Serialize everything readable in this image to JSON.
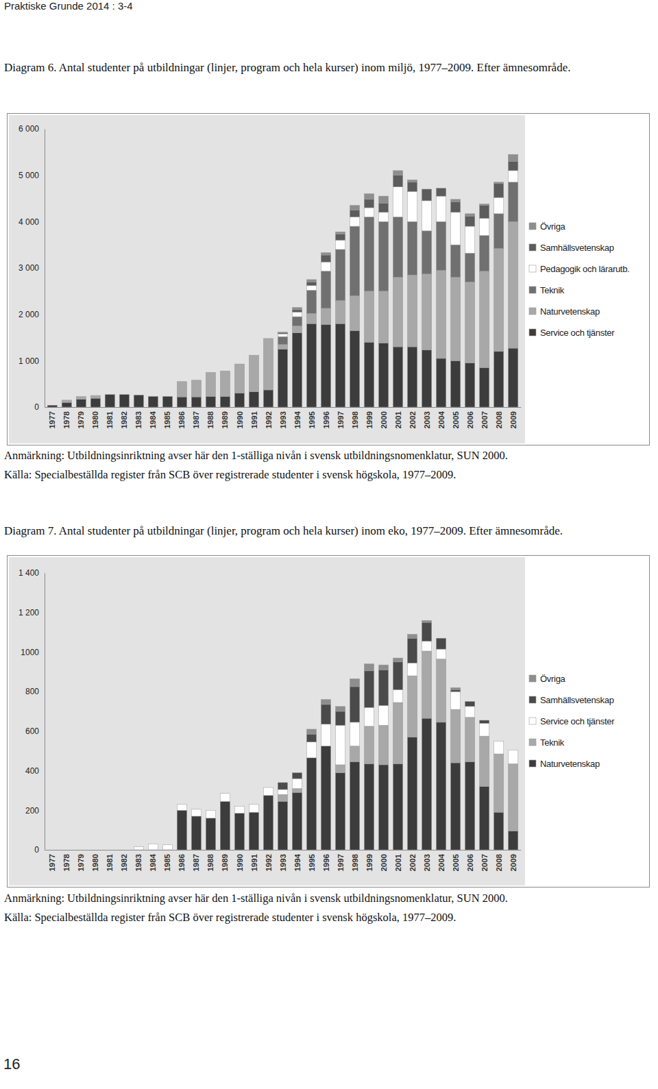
{
  "page": {
    "header": "Praktiske Grunde 2014 : 3-4",
    "page_number": "16"
  },
  "chart_data": [
    {
      "type": "bar",
      "stacked": true,
      "legend": "right",
      "grid": false,
      "title": "Diagram 6. Antal studenter på utbildningar (linjer, program och hela kurser) inom miljö, 1977–2009. Efter ämnesområde.",
      "annotations": [
        "Anmärkning: Utbildningsinriktning avser här den 1-ställiga nivån i svensk utbildningsnomenklatur, SUN 2000.",
        "Källa: Specialbeställda register från SCB över registrerade studenter i svensk högskola, 1977–2009."
      ],
      "categories": [
        "1977",
        "1978",
        "1979",
        "1980",
        "1981",
        "1982",
        "1983",
        "1984",
        "1985",
        "1986",
        "1987",
        "1988",
        "1989",
        "1990",
        "1991",
        "1992",
        "1993",
        "1994",
        "1995",
        "1996",
        "1997",
        "1998",
        "1999",
        "2000",
        "2001",
        "2002",
        "2003",
        "2004",
        "2005",
        "2006",
        "2007",
        "2008",
        "2009"
      ],
      "ylim": [
        0,
        6000
      ],
      "yticks": [
        0,
        {
          "value": 1000,
          "label": "1 000"
        },
        {
          "value": 2000,
          "label": "2 000"
        },
        {
          "value": 3000,
          "label": "3 000"
        },
        {
          "value": 4000,
          "label": "4 000"
        },
        {
          "value": 5000,
          "label": "5 000"
        },
        {
          "value": 6000,
          "label": "6 000"
        }
      ],
      "series": [
        {
          "name": "Service och tjänster",
          "color": "#3c3c3c",
          "values": [
            40,
            100,
            170,
            190,
            270,
            270,
            260,
            230,
            230,
            220,
            220,
            230,
            230,
            300,
            330,
            370,
            1250,
            1600,
            1800,
            1780,
            1800,
            1650,
            1400,
            1380,
            1300,
            1300,
            1230,
            1050,
            1000,
            950,
            850,
            1200,
            1270
          ]
        },
        {
          "name": "Naturvetenskap",
          "color": "#a8a8a8",
          "values": [
            0,
            50,
            60,
            60,
            0,
            0,
            0,
            0,
            0,
            330,
            360,
            520,
            550,
            630,
            790,
            1110,
            100,
            150,
            220,
            350,
            500,
            750,
            1100,
            1120,
            1500,
            1550,
            1640,
            1900,
            1800,
            1750,
            2080,
            2220,
            2730
          ]
        },
        {
          "name": "Teknik",
          "color": "#707070",
          "values": [
            0,
            0,
            0,
            0,
            0,
            0,
            0,
            0,
            0,
            0,
            0,
            0,
            0,
            0,
            0,
            0,
            170,
            200,
            500,
            800,
            1100,
            1500,
            1600,
            1500,
            1300,
            1150,
            930,
            1050,
            700,
            620,
            770,
            750,
            850
          ]
        },
        {
          "name": "Pedagogik och lärarutb.",
          "color": "#ffffff",
          "values": [
            0,
            0,
            0,
            0,
            0,
            0,
            0,
            0,
            0,
            0,
            0,
            0,
            0,
            0,
            0,
            0,
            60,
            100,
            100,
            200,
            200,
            200,
            200,
            200,
            650,
            650,
            650,
            550,
            700,
            580,
            370,
            350,
            250
          ]
        },
        {
          "name": "Samhällsvetenskap",
          "color": "#5c5c5c",
          "values": [
            0,
            0,
            0,
            0,
            0,
            0,
            0,
            0,
            0,
            0,
            0,
            0,
            0,
            0,
            0,
            0,
            20,
            50,
            80,
            150,
            130,
            150,
            180,
            200,
            250,
            200,
            250,
            170,
            230,
            220,
            280,
            300,
            200
          ]
        },
        {
          "name": "Övriga",
          "color": "#8e8e8e",
          "values": [
            0,
            0,
            0,
            0,
            0,
            0,
            0,
            0,
            0,
            0,
            0,
            0,
            0,
            0,
            0,
            0,
            20,
            50,
            50,
            50,
            50,
            100,
            120,
            150,
            100,
            50,
            0,
            0,
            50,
            50,
            30,
            30,
            150
          ]
        }
      ]
    },
    {
      "type": "bar",
      "stacked": true,
      "legend": "right",
      "grid": false,
      "title": "Diagram 7. Antal studenter på utbildningar (linjer, program och hela kurser) inom eko, 1977–2009. Efter ämnesområde.",
      "annotations": [
        "Anmärkning: Utbildningsinriktning avser här den 1-ställiga nivån i svensk utbildningsnomenklatur, SUN 2000.",
        "Källa: Specialbeställda register från SCB över registrerade studenter i svensk högskola, 1977–2009."
      ],
      "categories": [
        "1977",
        "1978",
        "1979",
        "1980",
        "1981",
        "1982",
        "1983",
        "1984",
        "1985",
        "1986",
        "1987",
        "1988",
        "1989",
        "1990",
        "1991",
        "1992",
        "1993",
        "1994",
        "1995",
        "1996",
        "1997",
        "1998",
        "1999",
        "2000",
        "2001",
        "2002",
        "2003",
        "2004",
        "2005",
        "2006",
        "2007",
        "2008",
        "2009"
      ],
      "ylim": [
        0,
        1400
      ],
      "yticks": [
        0,
        200,
        400,
        600,
        800,
        1000,
        {
          "value": 1200,
          "label": "1 200"
        },
        {
          "value": 1400,
          "label": "1 400"
        }
      ],
      "series": [
        {
          "name": "Naturvetenskap",
          "color": "#3c3c3c",
          "values": [
            0,
            0,
            0,
            0,
            0,
            0,
            0,
            0,
            0,
            200,
            170,
            160,
            245,
            185,
            190,
            275,
            245,
            290,
            465,
            525,
            390,
            445,
            435,
            430,
            435,
            570,
            665,
            645,
            440,
            445,
            320,
            190,
            95
          ]
        },
        {
          "name": "Teknik",
          "color": "#a8a8a8",
          "values": [
            0,
            0,
            0,
            0,
            0,
            0,
            0,
            0,
            0,
            0,
            0,
            0,
            0,
            0,
            0,
            0,
            35,
            20,
            0,
            0,
            40,
            80,
            190,
            200,
            310,
            310,
            340,
            320,
            270,
            225,
            255,
            295,
            340
          ]
        },
        {
          "name": "Service och tjänster",
          "color": "#ffffff",
          "values": [
            0,
            0,
            0,
            0,
            0,
            0,
            15,
            30,
            25,
            30,
            35,
            40,
            40,
            35,
            40,
            40,
            25,
            50,
            80,
            110,
            200,
            120,
            95,
            100,
            65,
            65,
            50,
            50,
            90,
            55,
            65,
            65,
            70
          ]
        },
        {
          "name": "Samhällsvetenskap",
          "color": "#4a4a4a",
          "values": [
            0,
            0,
            0,
            0,
            0,
            0,
            0,
            0,
            0,
            0,
            0,
            0,
            0,
            0,
            0,
            0,
            35,
            30,
            40,
            100,
            70,
            180,
            185,
            180,
            140,
            125,
            95,
            55,
            10,
            25,
            15,
            0,
            0
          ]
        },
        {
          "name": "Övriga",
          "color": "#8e8e8e",
          "values": [
            0,
            0,
            0,
            0,
            0,
            0,
            0,
            0,
            0,
            0,
            0,
            0,
            0,
            0,
            0,
            0,
            0,
            0,
            25,
            25,
            25,
            40,
            35,
            25,
            20,
            20,
            10,
            0,
            10,
            0,
            0,
            0,
            0
          ]
        }
      ]
    }
  ]
}
